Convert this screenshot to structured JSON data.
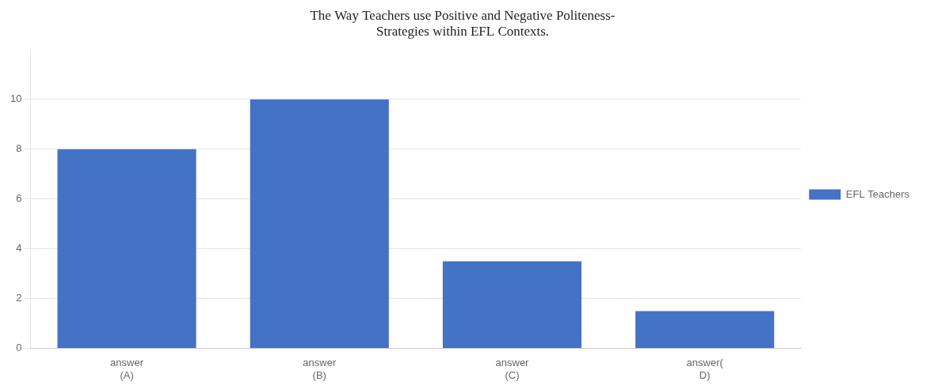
{
  "chart_data": {
    "type": "bar",
    "title": "The Way Teachers use Positive and Negative Politeness-\nStrategies within EFL Contexts.",
    "categories": [
      "answer\n(A)",
      "answer\n(B)",
      "answer\n(C)",
      "answer(\nD)"
    ],
    "series": [
      {
        "name": "EFL Teachers",
        "color": "#4472C4",
        "values": [
          8,
          10,
          3.5,
          1.5
        ]
      }
    ],
    "ylim": [
      0,
      12
    ],
    "yticks": [
      0,
      2,
      4,
      6,
      8,
      10
    ],
    "grid": true,
    "legend": "right"
  }
}
